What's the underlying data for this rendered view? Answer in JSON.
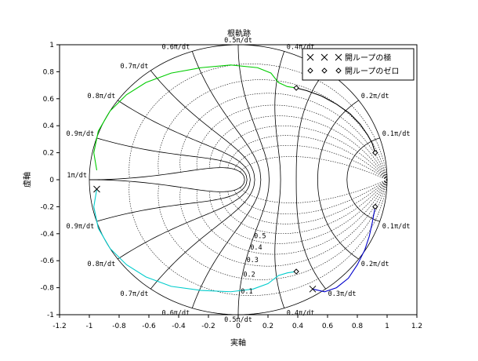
{
  "chart_data": {
    "type": "line",
    "title": "根軌跡",
    "xlabel": "実軸",
    "ylabel": "虚軸",
    "xlim": [
      -1.2,
      1.2
    ],
    "ylim": [
      -1,
      1
    ],
    "xticks": [
      "-1.2",
      "-1",
      "-0.8",
      "-0.6",
      "-0.4",
      "-0.2",
      "0",
      "0.2",
      "0.4",
      "0.6",
      "0.8",
      "1",
      "1.2"
    ],
    "yticks": [
      "-1",
      "-0.8",
      "-0.6",
      "-0.4",
      "-0.2",
      "0",
      "0.2",
      "0.4",
      "0.6",
      "0.8",
      "1"
    ],
    "grid": true,
    "legend_position": "top-right",
    "legend": [
      {
        "label": "開ループの極",
        "marker": "x"
      },
      {
        "label": "開ループのゼロ",
        "marker": "diamond"
      }
    ],
    "frequency_labels": [
      "0.1π/dt",
      "0.2π/dt",
      "0.3π/dt",
      "0.4π/dt",
      "0.5π/dt",
      "0.6π/dt",
      "0.7π/dt",
      "0.8π/dt",
      "0.9π/dt",
      "1π/dt"
    ],
    "damping_labels": [
      "0.1",
      "0.2",
      "0.3",
      "0.4",
      "0.5"
    ],
    "poles": [
      {
        "x": -0.95,
        "y": -0.07
      },
      {
        "x": 0.5,
        "y": -0.81
      }
    ],
    "zeros": [
      {
        "x": 0.39,
        "y": 0.68
      },
      {
        "x": 0.39,
        "y": -0.68
      },
      {
        "x": 0.92,
        "y": 0.2
      },
      {
        "x": 0.92,
        "y": -0.2
      }
    ],
    "series": [
      {
        "color": "#00cc00",
        "points": [
          [
            -0.95,
            0.07
          ],
          [
            -0.97,
            0.2
          ],
          [
            -0.94,
            0.36
          ],
          [
            -0.86,
            0.51
          ],
          [
            -0.75,
            0.63
          ],
          [
            -0.62,
            0.72
          ],
          [
            -0.45,
            0.79
          ],
          [
            -0.25,
            0.83
          ],
          [
            -0.05,
            0.85
          ],
          [
            0.13,
            0.83
          ],
          [
            0.22,
            0.79
          ],
          [
            0.27,
            0.72
          ],
          [
            0.33,
            0.69
          ],
          [
            0.39,
            0.68
          ]
        ]
      },
      {
        "color": "#00cccc",
        "points": [
          [
            -0.95,
            -0.07
          ],
          [
            -0.97,
            -0.2
          ],
          [
            -0.94,
            -0.36
          ],
          [
            -0.86,
            -0.51
          ],
          [
            -0.75,
            -0.63
          ],
          [
            -0.62,
            -0.72
          ],
          [
            -0.45,
            -0.79
          ],
          [
            -0.25,
            -0.82
          ],
          [
            -0.05,
            -0.83
          ],
          [
            0.1,
            -0.81
          ],
          [
            0.2,
            -0.77
          ],
          [
            0.27,
            -0.71
          ],
          [
            0.33,
            -0.69
          ],
          [
            0.39,
            -0.68
          ]
        ]
      },
      {
        "color": "#000000",
        "points": [
          [
            0.39,
            0.68
          ],
          [
            0.46,
            0.66
          ],
          [
            0.56,
            0.62
          ],
          [
            0.66,
            0.56
          ],
          [
            0.75,
            0.49
          ],
          [
            0.82,
            0.41
          ],
          [
            0.87,
            0.33
          ],
          [
            0.9,
            0.27
          ],
          [
            0.92,
            0.2
          ]
        ]
      },
      {
        "color": "#0000cc",
        "points": [
          [
            0.5,
            -0.81
          ],
          [
            0.58,
            -0.83
          ],
          [
            0.66,
            -0.8
          ],
          [
            0.74,
            -0.73
          ],
          [
            0.8,
            -0.63
          ],
          [
            0.85,
            -0.52
          ],
          [
            0.88,
            -0.42
          ],
          [
            0.9,
            -0.32
          ],
          [
            0.92,
            -0.2
          ]
        ]
      }
    ]
  }
}
